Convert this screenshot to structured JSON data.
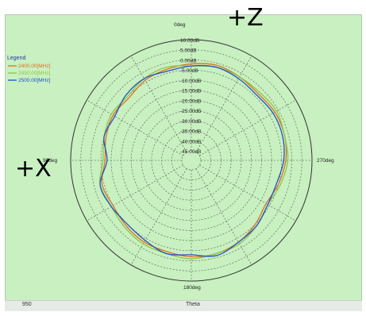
{
  "plot_header": "0deg",
  "status": {
    "left_value": "950",
    "axis_label": "Theta"
  },
  "overlay": {
    "z_label": "+Z",
    "x_label": "+X"
  },
  "chart_data": {
    "type": "polar",
    "radial_unit": "dB",
    "rlim": [
      -45,
      10
    ],
    "radial_ticks": [
      "10.00dB",
      "5.00dB",
      "0.00dB",
      "-5.00dB",
      "-10.00dB",
      "-15.00dB",
      "-20.00dB",
      "-25.00dB",
      "-30.00dB",
      "-35.00dB",
      "-40.00dB",
      "-45.00dB"
    ],
    "angle_labels": [
      {
        "deg": 0,
        "text": "0deg"
      },
      {
        "deg": 90,
        "text": "90deg"
      },
      {
        "deg": 180,
        "text": "180deg"
      },
      {
        "deg": 270,
        "text": "270deg"
      }
    ],
    "legend": {
      "title": "Legend",
      "placement": "top-left"
    },
    "angles_deg": [
      0,
      15,
      30,
      45,
      60,
      75,
      90,
      105,
      120,
      135,
      150,
      165,
      180,
      195,
      210,
      225,
      240,
      255,
      270,
      285,
      300,
      315,
      330,
      345
    ],
    "series": [
      {
        "name": "2400.00[MHz]",
        "color": "#e07020",
        "values": [
          -2,
          -1,
          -2,
          -3,
          -2,
          -2,
          -3,
          -5,
          -7,
          -5,
          -3,
          -2,
          -2,
          -3,
          -3,
          -4,
          -5,
          -4,
          -7,
          -6,
          -5,
          -6,
          -4,
          -3
        ]
      },
      {
        "name": "2450.00[MHz]",
        "color": "#8fc64a",
        "values": [
          -3,
          -2,
          -2,
          -2,
          -1,
          -2,
          -2,
          -4,
          -6,
          -4,
          -2,
          -2,
          -1,
          -2,
          -2,
          -3,
          -4,
          -3,
          -6,
          -5,
          -4,
          -5,
          -3,
          -2
        ]
      },
      {
        "name": "2500.00[MHz]",
        "color": "#2050c8",
        "values": [
          -3,
          -2,
          -3,
          -4,
          -3,
          -3,
          -4,
          -6,
          -6,
          -4,
          -3,
          -1,
          -3,
          -2,
          -4,
          -5,
          -4,
          -3,
          -8,
          -5,
          -6,
          -4,
          -3,
          -4
        ]
      }
    ]
  }
}
